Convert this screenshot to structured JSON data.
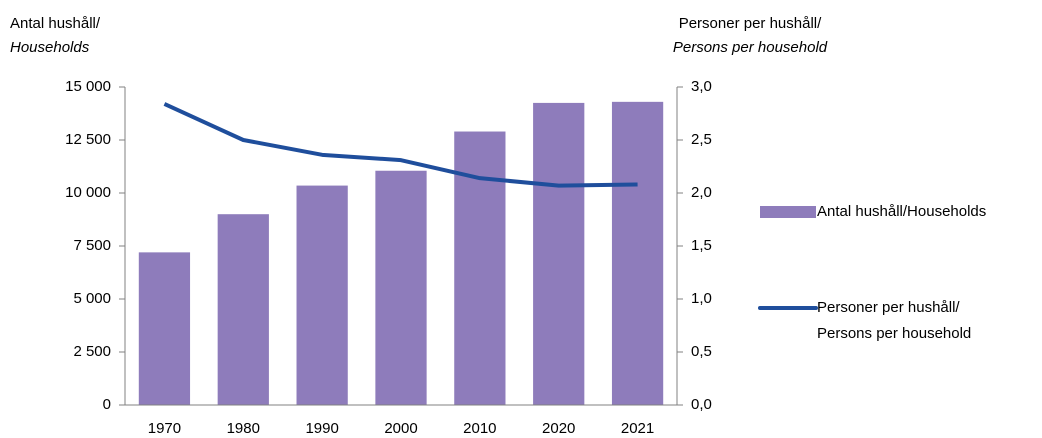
{
  "chart_data": {
    "type": "bar",
    "ylabel": [
      "Antal hushåll/",
      "Households"
    ],
    "y2label": [
      "Personer per hushåll/",
      "Persons per household"
    ],
    "categories": [
      "1970",
      "1980",
      "1990",
      "2000",
      "2010",
      "2020",
      "2021"
    ],
    "series": [
      {
        "name": [
          "Antal hushåll/Households"
        ],
        "type": "bar",
        "color": "#8e7cbb",
        "values": [
          7200,
          9000,
          10350,
          11050,
          12900,
          14250,
          14300
        ]
      },
      {
        "name": [
          "Personer per hushåll/",
          "Persons per household"
        ],
        "type": "line",
        "axis": "y2",
        "color": "#1f4e9c",
        "values": [
          2.84,
          2.5,
          2.36,
          2.31,
          2.14,
          2.07,
          2.08
        ]
      }
    ],
    "ylim": [
      0,
      15000
    ],
    "yticks": [
      0,
      {
        "value": 2500,
        "label": "2 500"
      },
      {
        "value": 5000,
        "label": "5 000"
      },
      {
        "value": 7500,
        "label": "7 500"
      },
      {
        "value": 10000,
        "label": "10 000"
      },
      {
        "value": 12500,
        "label": "12 500"
      },
      {
        "value": 15000,
        "label": "15 000"
      }
    ],
    "y2lim": [
      0,
      3
    ],
    "y2ticks": [
      {
        "value": 0,
        "label": "0,0"
      },
      {
        "value": 0.5,
        "label": "0,5"
      },
      {
        "value": 1,
        "label": "1,0"
      },
      {
        "value": 1.5,
        "label": "1,5"
      },
      {
        "value": 2,
        "label": "2,0"
      },
      {
        "value": 2.5,
        "label": "2,5"
      },
      {
        "value": 3,
        "label": "3,0"
      }
    ],
    "grid": false,
    "legend": "right"
  }
}
